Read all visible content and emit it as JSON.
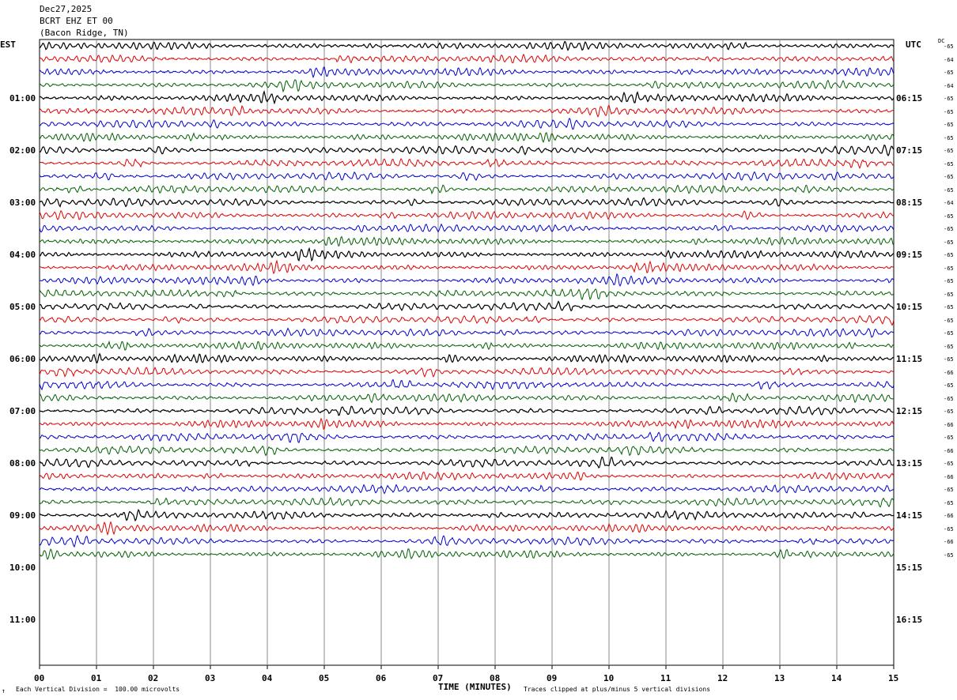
{
  "header": {
    "date": "Dec27,2025",
    "station": "BCRT EHZ ET 00",
    "location": "(Bacon Ridge, TN)"
  },
  "left_timezone": "EST",
  "right_timezone": "UTC",
  "dc_header": "DC",
  "footer": {
    "scale_note": "Each Vertical Division =  100.00 microvolts",
    "clip_note": "Traces clipped at plus/minus 5 vertical divisions",
    "corner_mark": "↑"
  },
  "chart_data": {
    "type": "line",
    "subtype": "helicorder",
    "xlabel": "TIME (MINUTES)",
    "x_ticks": [
      "00",
      "01",
      "02",
      "03",
      "04",
      "05",
      "06",
      "07",
      "08",
      "09",
      "10",
      "11",
      "12",
      "13",
      "14",
      "15"
    ],
    "xlim": [
      0,
      15
    ],
    "left_hour_labels": [
      "01:00",
      "02:00",
      "03:00",
      "04:00",
      "05:00",
      "06:00",
      "07:00",
      "08:00",
      "09:00",
      "10:00",
      "11:00"
    ],
    "right_hour_labels": [
      "06:15",
      "07:15",
      "08:15",
      "09:15",
      "10:15",
      "11:15",
      "12:15",
      "13:15",
      "14:15",
      "15:15",
      "16:15"
    ],
    "trace_colors": [
      "#000000",
      "#e00000",
      "#0000d0",
      "#006000"
    ],
    "trace_count": 40,
    "dc_offsets": [
      "-65",
      "-64",
      "-65",
      "-64",
      "-65",
      "-65",
      "-65",
      "-65",
      "-65",
      "-65",
      "-65",
      "-65",
      "-64",
      "-65",
      "-65",
      "-65",
      "-65",
      "-65",
      "-65",
      "-65",
      "-65",
      "-65",
      "-65",
      "-65",
      "-65",
      "-66",
      "-65",
      "-65",
      "-65",
      "-66",
      "-65",
      "-66",
      "-65",
      "-66",
      "-65",
      "-65",
      "-66",
      "-65",
      "-66",
      "-65"
    ],
    "grid": true
  }
}
